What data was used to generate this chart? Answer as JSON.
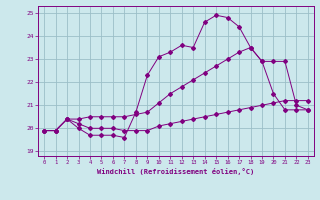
{
  "xlabel": "Windchill (Refroidissement éolien,°C)",
  "bg_color": "#cce8ec",
  "line_color": "#800080",
  "grid_color": "#9bbfc8",
  "xlim": [
    -0.5,
    23.5
  ],
  "ylim": [
    18.8,
    25.3
  ],
  "yticks": [
    19,
    20,
    21,
    22,
    23,
    24,
    25
  ],
  "xticks": [
    0,
    1,
    2,
    3,
    4,
    5,
    6,
    7,
    8,
    9,
    10,
    11,
    12,
    13,
    14,
    15,
    16,
    17,
    18,
    19,
    20,
    21,
    22,
    23
  ],
  "line1_x": [
    0,
    1,
    2,
    3,
    4,
    5,
    6,
    7,
    8,
    9,
    10,
    11,
    12,
    13,
    14,
    15,
    16,
    17,
    18,
    19,
    20,
    21,
    22,
    23
  ],
  "line1_y": [
    19.9,
    19.9,
    20.4,
    20.0,
    19.7,
    19.7,
    19.7,
    19.6,
    20.7,
    22.3,
    23.1,
    23.3,
    23.6,
    23.5,
    24.6,
    24.9,
    24.8,
    24.4,
    23.5,
    22.9,
    21.5,
    20.8,
    20.8,
    20.8
  ],
  "line2_x": [
    0,
    1,
    2,
    3,
    4,
    5,
    6,
    7,
    8,
    9,
    10,
    11,
    12,
    13,
    14,
    15,
    16,
    17,
    18,
    19,
    20,
    21,
    22,
    23
  ],
  "line2_y": [
    19.9,
    19.9,
    20.4,
    20.2,
    20.0,
    20.0,
    20.0,
    19.9,
    19.9,
    19.9,
    20.1,
    20.2,
    20.3,
    20.4,
    20.5,
    20.6,
    20.7,
    20.8,
    20.9,
    21.0,
    21.1,
    21.2,
    21.2,
    21.2
  ],
  "line3_x": [
    0,
    1,
    2,
    3,
    4,
    5,
    6,
    7,
    8,
    9,
    10,
    11,
    12,
    13,
    14,
    15,
    16,
    17,
    18,
    19,
    20,
    21,
    22,
    23
  ],
  "line3_y": [
    19.9,
    19.9,
    20.4,
    20.4,
    20.5,
    20.5,
    20.5,
    20.5,
    20.6,
    20.7,
    21.1,
    21.5,
    21.8,
    22.1,
    22.4,
    22.7,
    23.0,
    23.3,
    23.5,
    22.9,
    22.9,
    22.9,
    21.0,
    20.8
  ]
}
